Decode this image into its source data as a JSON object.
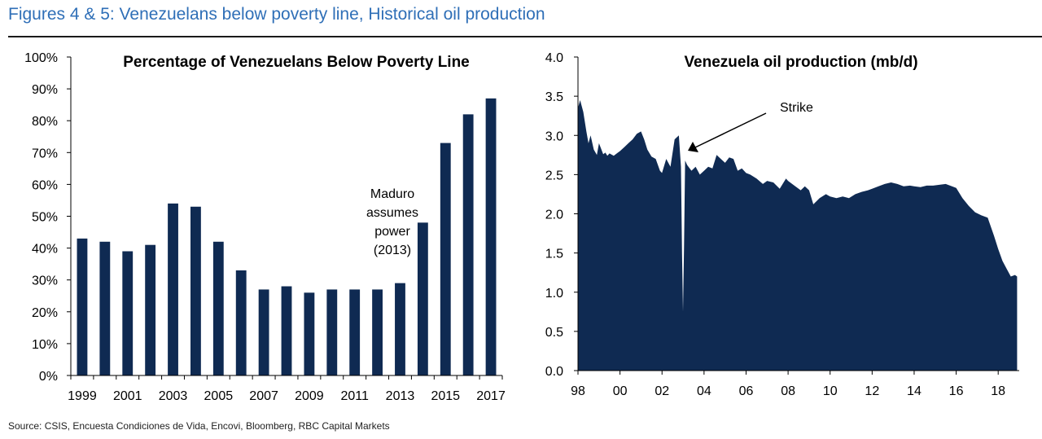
{
  "header": {
    "title": "Figures 4 & 5: Venezuelans below poverty line, Historical oil production"
  },
  "footer": {
    "source": "Source: CSIS, Encuesta Condiciones de Vida, Encovi, Bloomberg, RBC Capital Markets"
  },
  "colors": {
    "title": "#2f6fb7",
    "bars": "#0f2a52",
    "area": "#0f2a52",
    "axis": "#000000"
  },
  "chart_data": [
    {
      "type": "bar",
      "title": "Percentage of Venezuelans Below Poverty Line",
      "xlabel": "",
      "ylabel": "",
      "ylim": [
        0,
        100
      ],
      "yticks": [
        "0%",
        "10%",
        "20%",
        "30%",
        "40%",
        "50%",
        "60%",
        "70%",
        "80%",
        "90%",
        "100%"
      ],
      "categories": [
        "1999",
        "2000",
        "2001",
        "2002",
        "2003",
        "2004",
        "2005",
        "2006",
        "2007",
        "2008",
        "2009",
        "2010",
        "2011",
        "2012",
        "2013",
        "2014",
        "2015",
        "2016",
        "2017"
      ],
      "xtick_labels": [
        "1999",
        "2001",
        "2003",
        "2005",
        "2007",
        "2009",
        "2011",
        "2013",
        "2015",
        "2017"
      ],
      "values": [
        43,
        42,
        39,
        41,
        54,
        53,
        42,
        33,
        27,
        28,
        26,
        27,
        27,
        27,
        29,
        48,
        73,
        82,
        87
      ],
      "annotation": {
        "lines": [
          "Maduro",
          "assumes",
          "power",
          "(2013)"
        ]
      },
      "grid": false,
      "legend": "none"
    },
    {
      "type": "area",
      "title": "Venezuela oil production (mb/d)",
      "xlabel": "",
      "ylabel": "",
      "xlim": [
        1998,
        2019
      ],
      "ylim": [
        0,
        4.0
      ],
      "yticks": [
        "0.0",
        "0.5",
        "1.0",
        "1.5",
        "2.0",
        "2.5",
        "3.0",
        "3.5",
        "4.0"
      ],
      "xtick_labels": [
        "98",
        "00",
        "02",
        "04",
        "06",
        "08",
        "10",
        "12",
        "14",
        "16",
        "18"
      ],
      "x": [
        1998.0,
        1998.1,
        1998.25,
        1998.4,
        1998.5,
        1998.6,
        1998.75,
        1998.9,
        1999.0,
        1999.2,
        1999.3,
        1999.4,
        1999.5,
        1999.7,
        1999.9,
        2000.0,
        2000.2,
        2000.4,
        2000.6,
        2000.8,
        2001.0,
        2001.15,
        2001.3,
        2001.5,
        2001.7,
        2001.9,
        2002.0,
        2002.2,
        2002.4,
        2002.6,
        2002.8,
        2002.9,
        2002.95,
        2003.0,
        2003.05,
        2003.1,
        2003.2,
        2003.4,
        2003.6,
        2003.8,
        2004.0,
        2004.2,
        2004.4,
        2004.6,
        2004.8,
        2005.0,
        2005.2,
        2005.4,
        2005.6,
        2005.8,
        2006.0,
        2006.2,
        2006.5,
        2006.8,
        2007.0,
        2007.3,
        2007.6,
        2007.9,
        2008.0,
        2008.3,
        2008.6,
        2008.8,
        2009.0,
        2009.2,
        2009.5,
        2009.8,
        2010.0,
        2010.3,
        2010.6,
        2010.9,
        2011.2,
        2011.5,
        2011.8,
        2012.0,
        2012.3,
        2012.6,
        2012.9,
        2013.2,
        2013.5,
        2013.8,
        2014.0,
        2014.3,
        2014.6,
        2014.9,
        2015.2,
        2015.5,
        2015.8,
        2016.0,
        2016.3,
        2016.6,
        2016.9,
        2017.2,
        2017.5,
        2017.8,
        2018.0,
        2018.2,
        2018.4,
        2018.6,
        2018.8,
        2018.9
      ],
      "y": [
        3.35,
        3.45,
        3.3,
        3.05,
        2.9,
        3.0,
        2.82,
        2.75,
        2.9,
        2.76,
        2.78,
        2.74,
        2.77,
        2.74,
        2.78,
        2.8,
        2.85,
        2.9,
        2.95,
        3.02,
        3.05,
        2.95,
        2.82,
        2.73,
        2.7,
        2.55,
        2.52,
        2.7,
        2.6,
        2.95,
        3.0,
        2.6,
        1.5,
        0.75,
        1.6,
        2.68,
        2.62,
        2.55,
        2.6,
        2.5,
        2.55,
        2.6,
        2.58,
        2.75,
        2.7,
        2.65,
        2.72,
        2.7,
        2.55,
        2.58,
        2.52,
        2.5,
        2.45,
        2.38,
        2.42,
        2.4,
        2.32,
        2.45,
        2.42,
        2.36,
        2.3,
        2.35,
        2.3,
        2.12,
        2.2,
        2.25,
        2.22,
        2.2,
        2.22,
        2.2,
        2.25,
        2.28,
        2.3,
        2.32,
        2.35,
        2.38,
        2.4,
        2.38,
        2.35,
        2.36,
        2.35,
        2.34,
        2.36,
        2.36,
        2.37,
        2.38,
        2.35,
        2.33,
        2.2,
        2.1,
        2.02,
        1.98,
        1.95,
        1.72,
        1.55,
        1.4,
        1.3,
        1.2,
        1.22,
        1.2
      ],
      "annotation": {
        "text": "Strike"
      },
      "grid": false,
      "legend": "none"
    }
  ]
}
